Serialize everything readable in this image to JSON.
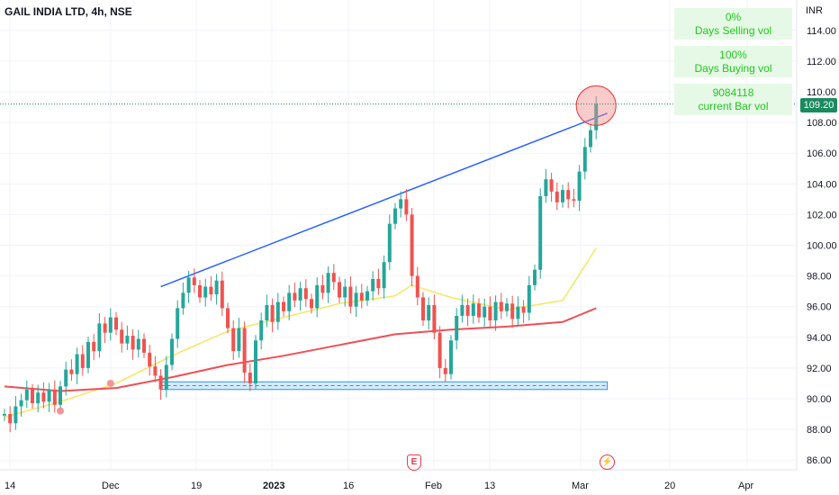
{
  "header": {
    "symbol_title": "GAIL INDIA LTD, 4h, NSE"
  },
  "price_axis": {
    "currency": "INR",
    "current_price_label": "109.20"
  },
  "info_boxes": [
    {
      "value": "0%",
      "label": "Days Selling vol"
    },
    {
      "value": "100%",
      "label": "Days Buying vol"
    },
    {
      "value": "9084118",
      "label": "current Bar vol"
    }
  ],
  "events": {
    "earnings_icon": "earnings-e-icon",
    "dividend_icon": "flash-icon"
  },
  "colors": {
    "up": "#26a69a",
    "down": "#ef5350",
    "trendline": "#2962ff",
    "ma_fast": "#f5e663",
    "ma_slow": "#ef4f56",
    "support": "#2196f3"
  },
  "chart_data": {
    "type": "candlestick",
    "title": "GAIL INDIA LTD, 4h, NSE",
    "y_unit": "INR",
    "ylim": [
      85.5,
      115.5
    ],
    "y_ticks": [
      86,
      88,
      90,
      92,
      94,
      96,
      98,
      100,
      102,
      104,
      106,
      108,
      110,
      112,
      114
    ],
    "x_ticks": [
      "14",
      "Dec",
      "19",
      "2023",
      "16",
      "Feb",
      "13",
      "Mar",
      "20",
      "Apr"
    ],
    "last_price": 109.2,
    "grid": true,
    "series": [
      {
        "name": "candles",
        "closes": [
          89.0,
          88.4,
          89.5,
          89.9,
          90.6,
          89.7,
          90.4,
          89.8,
          90.6,
          89.6,
          90.8,
          91.9,
          91.6,
          92.9,
          92.0,
          93.7,
          93.1,
          94.9,
          94.3,
          95.3,
          94.5,
          93.6,
          94.1,
          93.2,
          93.9,
          93.0,
          92.1,
          91.5,
          90.6,
          92.2,
          93.9,
          95.9,
          96.9,
          97.9,
          97.4,
          96.6,
          97.3,
          96.8,
          97.7,
          95.9,
          94.6,
          93.1,
          94.6,
          91.7,
          91.0,
          93.8,
          95.1,
          96.1,
          95.0,
          96.3,
          95.7,
          96.9,
          96.4,
          97.2,
          96.5,
          95.9,
          97.4,
          96.9,
          98.2,
          97.6,
          96.6,
          97.3,
          96.0,
          96.9,
          96.4,
          97.0,
          97.8,
          97.2,
          98.9,
          101.4,
          102.4,
          103.0,
          102.0,
          98.0,
          96.6,
          95.1,
          96.1,
          94.3,
          92.0,
          91.6,
          93.8,
          95.4,
          96.1,
          95.4,
          96.2,
          95.3,
          96.0,
          95.1,
          96.3,
          95.7,
          96.2,
          95.2,
          96.0,
          95.6,
          97.4,
          98.4,
          103.2,
          104.3,
          103.5,
          102.8,
          103.6,
          103.0,
          102.9,
          104.8,
          106.4,
          107.5,
          109.2
        ]
      },
      {
        "name": "ma_fast",
        "x_index": [
          0,
          10,
          20,
          30,
          40,
          50,
          60,
          70,
          73,
          80,
          90,
          100,
          106
        ],
        "values": [
          88.8,
          89.8,
          91.0,
          92.8,
          94.4,
          95.3,
          96.2,
          96.7,
          97.4,
          96.6,
          95.8,
          96.4,
          99.8
        ]
      },
      {
        "name": "ma_slow",
        "x_index": [
          0,
          10,
          20,
          30,
          40,
          50,
          60,
          70,
          80,
          90,
          100,
          106
        ],
        "values": [
          90.8,
          90.5,
          90.7,
          91.4,
          92.2,
          92.8,
          93.5,
          94.2,
          94.5,
          94.7,
          95.0,
          95.9
        ]
      }
    ],
    "trendline": {
      "from": {
        "index": 28,
        "price": 97.3
      },
      "to": {
        "index": 108,
        "price": 108.6
      }
    },
    "support_zone": {
      "from_index": 28,
      "to_index": 108,
      "low": 90.6,
      "high": 91.1,
      "mid": 90.85
    },
    "markers": [
      {
        "index": 10,
        "price": 89.2
      },
      {
        "index": 19,
        "price": 91.0
      },
      {
        "index": 106,
        "price": 109.1,
        "highlight": true
      }
    ]
  }
}
